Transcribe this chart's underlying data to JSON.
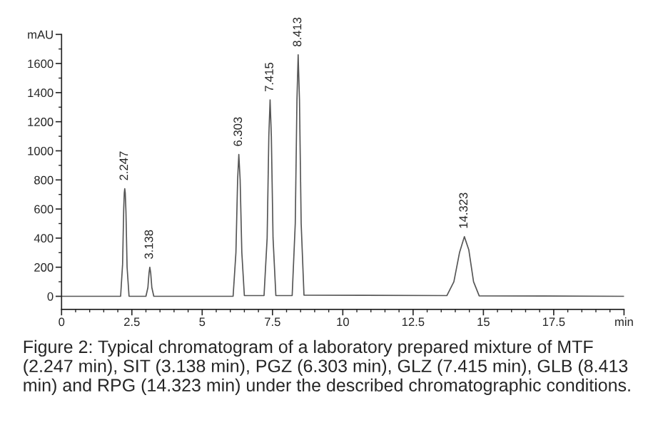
{
  "chart_data": {
    "type": "line",
    "x": [
      0,
      2.1,
      2.17,
      2.21,
      2.23,
      2.247,
      2.265,
      2.29,
      2.33,
      2.4,
      3.0,
      3.07,
      3.11,
      3.138,
      3.17,
      3.21,
      3.28,
      6.1,
      6.2,
      6.26,
      6.303,
      6.35,
      6.41,
      6.5,
      7.2,
      7.31,
      7.37,
      7.415,
      7.46,
      7.52,
      7.62,
      8.2,
      8.31,
      8.37,
      8.413,
      8.46,
      8.52,
      8.62,
      13.7,
      13.95,
      14.15,
      14.323,
      14.48,
      14.65,
      14.85,
      20
    ],
    "series": [
      {
        "color": "#555555",
        "values": [
          0,
          0,
          220,
          600,
          710,
          740,
          710,
          580,
          200,
          0,
          0,
          60,
          160,
          200,
          160,
          60,
          0,
          0,
          300,
          800,
          975,
          800,
          300,
          5,
          5,
          400,
          1100,
          1350,
          1100,
          400,
          5,
          5,
          500,
          1350,
          1660,
          1350,
          500,
          8,
          5,
          100,
          300,
          410,
          320,
          100,
          3,
          0
        ]
      }
    ],
    "xlim": [
      0,
      20
    ],
    "ylim": [
      -90,
      1800
    ],
    "xticks": [
      0,
      2.5,
      5,
      7.5,
      10,
      12.5,
      15,
      17.5,
      {
        "value": 20,
        "label": "min"
      }
    ],
    "yticks": [
      0,
      200,
      400,
      600,
      800,
      1000,
      1200,
      1400,
      1600,
      {
        "value": 1800,
        "label": "mAU"
      }
    ],
    "grid": false,
    "marker": "none",
    "line_style": "solid",
    "annotations": [
      {
        "text": "2.247",
        "x": 2.247,
        "y": 740
      },
      {
        "text": "3.138",
        "x": 3.138,
        "y": 200
      },
      {
        "text": "6.303",
        "x": 6.303,
        "y": 975
      },
      {
        "text": "7.415",
        "x": 7.415,
        "y": 1350
      },
      {
        "text": "8.413",
        "x": 8.413,
        "y": 1660
      },
      {
        "text": "14.323",
        "x": 14.323,
        "y": 410
      },
      "Figure 2: Typical chromatogram of a laboratory prepared mixture of MTF (2.247 min), SIT (3.138 min), PGZ (6.303 min), GLZ (7.415 min), GLB (8.413 min) and RPG (14.323 min) under the described chromatographic conditions."
    ]
  }
}
